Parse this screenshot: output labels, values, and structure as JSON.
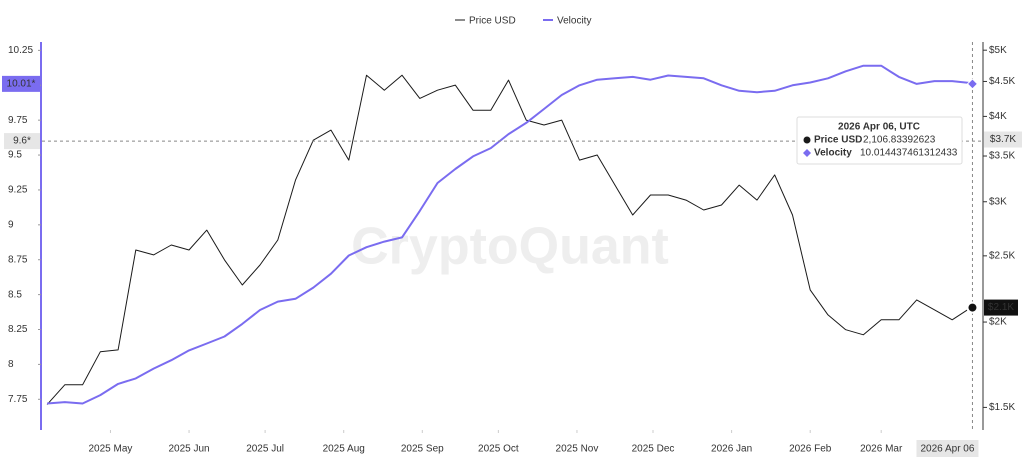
{
  "chart_data": {
    "type": "line",
    "watermark": "CryptoQuant",
    "x": [
      "2025-04-06",
      "2025-04-13",
      "2025-04-20",
      "2025-04-27",
      "2025-05-04",
      "2025-05-11",
      "2025-05-18",
      "2025-05-25",
      "2025-06-01",
      "2025-06-08",
      "2025-06-15",
      "2025-06-22",
      "2025-06-29",
      "2025-07-06",
      "2025-07-13",
      "2025-07-20",
      "2025-07-27",
      "2025-08-03",
      "2025-08-10",
      "2025-08-17",
      "2025-08-24",
      "2025-08-31",
      "2025-09-07",
      "2025-09-14",
      "2025-09-21",
      "2025-09-28",
      "2025-10-05",
      "2025-10-12",
      "2025-10-19",
      "2025-10-26",
      "2025-11-02",
      "2025-11-09",
      "2025-11-16",
      "2025-11-23",
      "2025-11-30",
      "2025-12-07",
      "2025-12-14",
      "2025-12-21",
      "2025-12-28",
      "2026-01-04",
      "2026-01-11",
      "2026-01-18",
      "2026-01-25",
      "2026-02-01",
      "2026-02-08",
      "2026-02-15",
      "2026-02-22",
      "2026-03-01",
      "2026-03-08",
      "2026-03-15",
      "2026-03-22",
      "2026-03-29",
      "2026-04-06"
    ],
    "series": [
      {
        "name": "Price USD",
        "color": "#1a1a1a",
        "axis": "y2",
        "values": [
          1514,
          1619,
          1619,
          1809,
          1821,
          2550,
          2508,
          2593,
          2550,
          2727,
          2466,
          2266,
          2424,
          2637,
          3227,
          3692,
          3819,
          3452,
          4596,
          4370,
          4596,
          4250,
          4370,
          4445,
          4085,
          4085,
          4520,
          3951,
          3886,
          3951,
          3452,
          3512,
          3173,
          2869,
          3069,
          3069,
          3017,
          2918,
          2967,
          3173,
          3017,
          3284,
          2869,
          2229,
          2049,
          1949,
          1916,
          2015,
          2015,
          2155,
          2084,
          2015,
          2106.83392623
        ]
      },
      {
        "name": "Velocity",
        "color": "#7a6cf0",
        "values": [
          7.72,
          7.73,
          7.72,
          7.78,
          7.86,
          7.9,
          7.97,
          8.03,
          8.1,
          8.15,
          8.2,
          8.29,
          8.39,
          8.45,
          8.47,
          8.55,
          8.65,
          8.78,
          8.84,
          8.88,
          8.91,
          9.1,
          9.3,
          9.4,
          9.49,
          9.55,
          9.65,
          9.73,
          9.83,
          9.93,
          10.0,
          10.04,
          10.05,
          10.06,
          10.04,
          10.07,
          10.06,
          10.05,
          10.0,
          9.96,
          9.95,
          9.96,
          10.0,
          10.02,
          10.05,
          10.1,
          10.14,
          10.14,
          10.06,
          10.01,
          10.03,
          10.03,
          10.014437461312433
        ]
      }
    ],
    "xlim": [
      "2025-04-04",
      "2026-04-07"
    ],
    "xticks": [
      {
        "value": "2025-05-01",
        "label": "2025 May"
      },
      {
        "value": "2025-06-01",
        "label": "2025 Jun"
      },
      {
        "value": "2025-07-01",
        "label": "2025 Jul"
      },
      {
        "value": "2025-08-01",
        "label": "2025 Aug"
      },
      {
        "value": "2025-09-01",
        "label": "2025 Sep"
      },
      {
        "value": "2025-10-01",
        "label": "2025 Oct"
      },
      {
        "value": "2025-11-01",
        "label": "2025 Nov"
      },
      {
        "value": "2025-12-01",
        "label": "2025 Dec"
      },
      {
        "value": "2026-01-01",
        "label": "2026 Jan"
      },
      {
        "value": "2026-02-01",
        "label": "2026 Feb"
      },
      {
        "value": "2026-03-01",
        "label": "2026 Mar"
      }
    ],
    "ylim": [
      7.53,
      10.31
    ],
    "yticks": [
      10.25,
      10,
      9.75,
      9.5,
      9.25,
      9,
      8.75,
      8.5,
      8.25,
      8,
      7.75
    ],
    "y2lim": [
      1390,
      5140
    ],
    "y2log": true,
    "y2ticks": [
      {
        "value": 5000,
        "label": "$5K"
      },
      {
        "value": 4500,
        "label": "$4.5K"
      },
      {
        "value": 4000,
        "label": "$4K"
      },
      {
        "value": 3500,
        "label": "$3.5K"
      },
      {
        "value": 3000,
        "label": "$3K"
      },
      {
        "value": 2500,
        "label": "$2.5K"
      },
      {
        "value": 2000,
        "label": "$2K"
      },
      {
        "value": 1500,
        "label": "$1.5K"
      }
    ],
    "crosshair": {
      "x": {
        "value": "2026-04-06",
        "label": "2026 Apr 06"
      },
      "y": {
        "value": 9.6,
        "label": "9.6*"
      },
      "y2": {
        "value": 3700,
        "label": "$3.7K"
      }
    },
    "last_values": [
      {
        "axis": "y2",
        "value": 2100,
        "label": "$2.1K"
      },
      {
        "axis": "y",
        "value": 10.01,
        "label": "10.01*"
      }
    ],
    "tooltip": {
      "title": "2026 Apr 06, UTC",
      "items": [
        {
          "name": "Price USD",
          "value": "2,106.83392623"
        },
        {
          "name": "Velocity",
          "value": "10.014437461312433"
        }
      ]
    }
  }
}
